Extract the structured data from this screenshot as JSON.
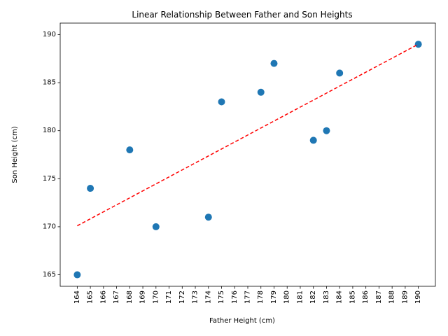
{
  "chart_data": {
    "type": "scatter",
    "title": "Linear Relationship Between Father and Son Heights",
    "xlabel": "Father Height (cm)",
    "ylabel": "Son Height (cm)",
    "xlim": [
      162.7,
      191.3
    ],
    "ylim": [
      163.8,
      191.2
    ],
    "x_ticks": [
      164,
      165,
      166,
      167,
      168,
      169,
      170,
      171,
      172,
      173,
      174,
      175,
      176,
      177,
      178,
      179,
      180,
      181,
      182,
      183,
      184,
      185,
      186,
      187,
      188,
      189,
      190
    ],
    "y_ticks": [
      165,
      170,
      175,
      180,
      185,
      190
    ],
    "grid": false,
    "points": {
      "x": [
        164,
        165,
        168,
        170,
        174,
        175,
        178,
        179,
        182,
        183,
        184,
        190
      ],
      "y": [
        165,
        174,
        178,
        170,
        171,
        183,
        184,
        187,
        179,
        180,
        186,
        189
      ]
    },
    "marker_color": "#1f77b4",
    "trendline": {
      "style": "dashed",
      "color": "#ff0000",
      "x": [
        164,
        190
      ],
      "y": [
        170.1,
        189.0
      ]
    }
  }
}
